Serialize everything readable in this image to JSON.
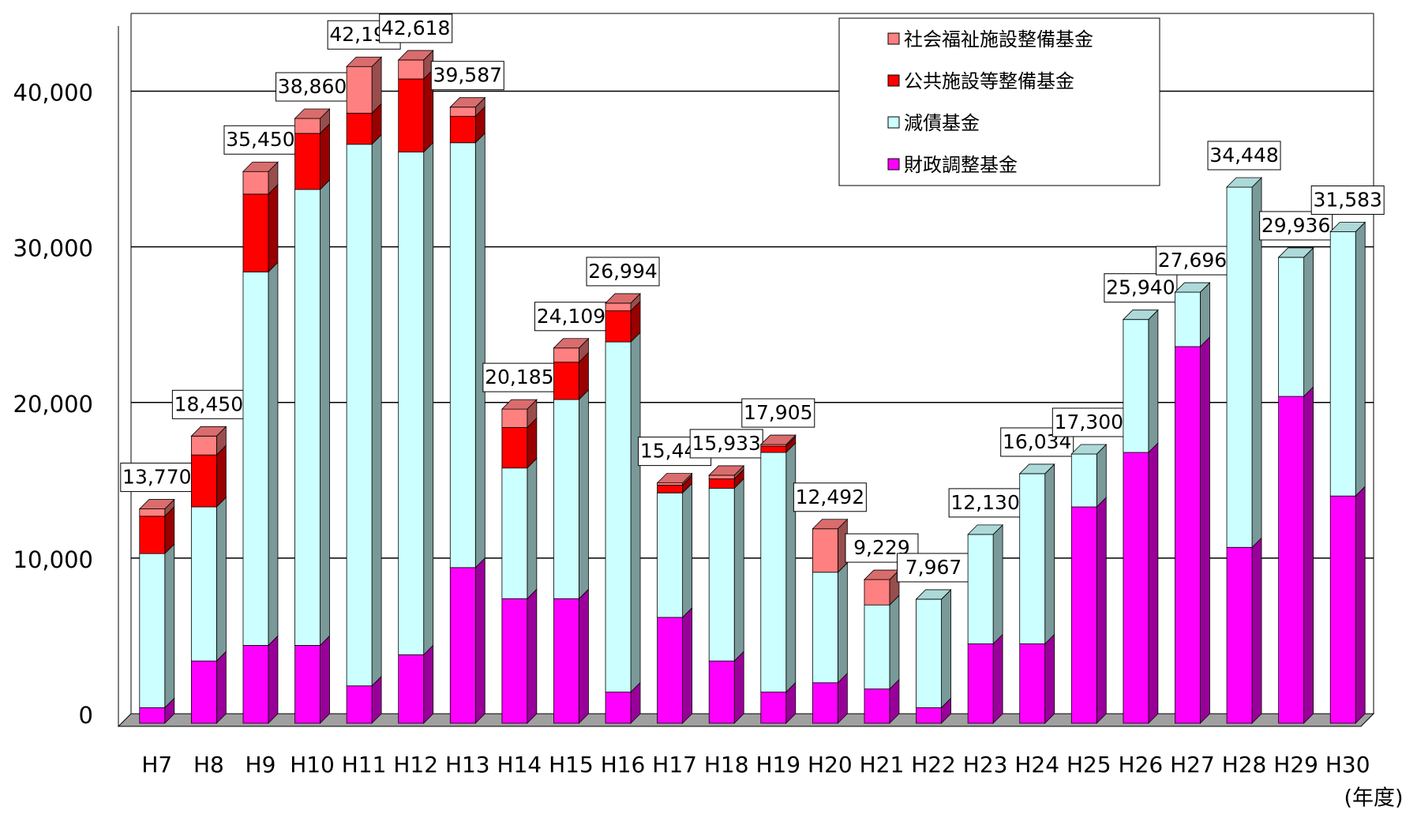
{
  "chart_data": {
    "type": "bar",
    "stacked": true,
    "x_label": "(年度)",
    "categories": [
      "H7",
      "H8",
      "H9",
      "H10",
      "H11",
      "H12",
      "H13",
      "H14",
      "H15",
      "H16",
      "H17",
      "H18",
      "H19",
      "H20",
      "H21",
      "H22",
      "H23",
      "H24",
      "H25",
      "H26",
      "H27",
      "H28",
      "H29",
      "H30"
    ],
    "series": [
      {
        "name": "財政調整基金",
        "color": "#ff00ff",
        "values": [
          1000,
          4000,
          5000,
          5000,
          2400,
          4400,
          10000,
          8000,
          8000,
          2000,
          6800,
          4000,
          2000,
          2600,
          2200,
          1000,
          5100,
          5100,
          13900,
          17400,
          24200,
          11300,
          21000,
          14600
        ]
      },
      {
        "name": "減債基金",
        "color": "#ccffff",
        "values": [
          9900,
          9900,
          24000,
          29300,
          34800,
          32300,
          27300,
          8400,
          12800,
          22500,
          8000,
          11100,
          15400,
          7100,
          5400,
          6967,
          7030,
          10934,
          3400,
          8540,
          3496,
          23148,
          8936,
          16983
        ]
      },
      {
        "name": "公共施設等整備基金",
        "color": "#ff0000",
        "values": [
          2400,
          3340,
          5000,
          3600,
          2000,
          4700,
          1700,
          2600,
          2400,
          2000,
          500,
          600,
          400,
          0,
          0,
          0,
          0,
          0,
          0,
          0,
          0,
          0,
          0,
          0
        ]
      },
      {
        "name": "社会福祉施設整備基金",
        "color": "#ff8080",
        "values": [
          470,
          1210,
          1450,
          960,
          2998,
          1218,
          587,
          1185,
          909,
          494,
          142,
          233,
          105,
          2792,
          1629,
          0,
          0,
          0,
          0,
          0,
          0,
          0,
          0,
          0
        ]
      }
    ],
    "totals": [
      13770,
      18450,
      35450,
      38860,
      42198,
      42618,
      39587,
      20185,
      24109,
      26994,
      15442,
      15933,
      17905,
      12492,
      9229,
      7967,
      12130,
      16034,
      17300,
      25940,
      27696,
      34448,
      29936,
      31583
    ],
    "total_labels": [
      "13,770",
      "18,450",
      "35,450",
      "38,860",
      "42,198",
      "42,618",
      "39,587",
      "20,185",
      "24,109",
      "26,994",
      "15,442",
      "15,933",
      "17,905",
      "12,492",
      "9,229",
      "7,967",
      "12,130",
      "16,034",
      "17,300",
      "25,940",
      "27,696",
      "34,448",
      "29,936",
      "31,583"
    ],
    "ylim": [
      0,
      45000
    ],
    "yticks": [
      0,
      {
        "value": 10000,
        "label": "10,000"
      },
      {
        "value": 20000,
        "label": "20,000"
      },
      {
        "value": 30000,
        "label": "30,000"
      },
      {
        "value": 40000,
        "label": "40,000"
      }
    ],
    "grid": true
  }
}
